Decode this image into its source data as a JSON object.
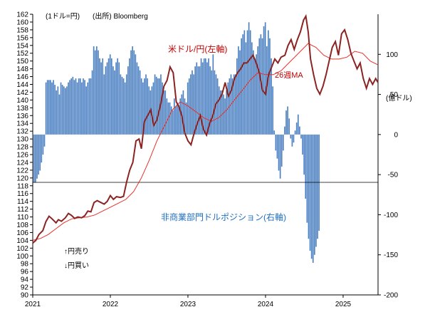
{
  "chart_data": {
    "type": "bar+line",
    "notes": {
      "unit_left": "(1ドル=円)",
      "source": "(出所) Bloomberg",
      "unit_right": "(億ドル)",
      "arrow_up": "↑円売り",
      "arrow_down": "↓円買い"
    },
    "labels": {
      "usdjpy": "米ドル/円(左軸)",
      "ma": "26週MA",
      "position": "非商業部門ドルポジション(右軸)"
    },
    "left_axis": {
      "min": 90,
      "max": 162,
      "step": 2,
      "ticks": [
        "90",
        "92",
        "94",
        "96",
        "98",
        "100",
        "102",
        "104",
        "106",
        "108",
        "110",
        "112",
        "114",
        "116",
        "118",
        "120",
        "122",
        "124",
        "126",
        "128",
        "130",
        "132",
        "134",
        "136",
        "138",
        "140",
        "142",
        "144",
        "146",
        "148",
        "150",
        "152",
        "154",
        "156",
        "158",
        "160",
        "162"
      ]
    },
    "right_axis": {
      "min": -200,
      "max": 150,
      "step": 50,
      "ticks": [
        "-200",
        "-150",
        "-100",
        "-50",
        "0",
        "50",
        "100"
      ]
    },
    "x_axis": {
      "start": 2021.0,
      "end": 2025.45,
      "ticks": [
        "2021",
        "2022",
        "2023",
        "2024",
        "2025"
      ]
    },
    "colors": {
      "usdjpy": "#8b2323",
      "ma": "#e8312b",
      "bars": "#4a7fc1",
      "axis": "#000000",
      "labels_red": "#c00000",
      "labels_blue": "#1f6fc0"
    },
    "series": [
      {
        "name": "米ドル/円(左軸)",
        "kind": "line",
        "axis": "left",
        "points": [
          [
            2021.0,
            103.3
          ],
          [
            2021.04,
            104.0
          ],
          [
            2021.08,
            105.5
          ],
          [
            2021.13,
            106.5
          ],
          [
            2021.17,
            108.8
          ],
          [
            2021.21,
            110.2
          ],
          [
            2021.25,
            109.5
          ],
          [
            2021.3,
            108.5
          ],
          [
            2021.33,
            109.3
          ],
          [
            2021.37,
            108.9
          ],
          [
            2021.42,
            109.8
          ],
          [
            2021.46,
            110.9
          ],
          [
            2021.5,
            110.4
          ],
          [
            2021.54,
            109.6
          ],
          [
            2021.58,
            110.0
          ],
          [
            2021.63,
            109.8
          ],
          [
            2021.67,
            110.3
          ],
          [
            2021.71,
            111.5
          ],
          [
            2021.75,
            111.3
          ],
          [
            2021.79,
            113.7
          ],
          [
            2021.83,
            114.2
          ],
          [
            2021.87,
            113.8
          ],
          [
            2021.92,
            113.3
          ],
          [
            2021.96,
            114.0
          ],
          [
            2022.0,
            115.5
          ],
          [
            2022.04,
            114.5
          ],
          [
            2022.08,
            115.2
          ],
          [
            2022.13,
            115.0
          ],
          [
            2022.17,
            115.3
          ],
          [
            2022.21,
            119.0
          ],
          [
            2022.25,
            122.0
          ],
          [
            2022.29,
            124.0
          ],
          [
            2022.33,
            129.5
          ],
          [
            2022.37,
            130.0
          ],
          [
            2022.4,
            127.5
          ],
          [
            2022.44,
            134.5
          ],
          [
            2022.48,
            136.0
          ],
          [
            2022.52,
            137.5
          ],
          [
            2022.56,
            133.5
          ],
          [
            2022.6,
            134.8
          ],
          [
            2022.65,
            139.0
          ],
          [
            2022.69,
            143.5
          ],
          [
            2022.73,
            145.0
          ],
          [
            2022.77,
            148.5
          ],
          [
            2022.81,
            147.0
          ],
          [
            2022.85,
            139.5
          ],
          [
            2022.88,
            138.5
          ],
          [
            2022.92,
            136.0
          ],
          [
            2022.96,
            131.5
          ],
          [
            2023.0,
            129.5
          ],
          [
            2023.04,
            128.5
          ],
          [
            2023.08,
            131.5
          ],
          [
            2023.12,
            134.0
          ],
          [
            2023.16,
            136.0
          ],
          [
            2023.2,
            132.5
          ],
          [
            2023.24,
            131.0
          ],
          [
            2023.28,
            134.0
          ],
          [
            2023.32,
            136.0
          ],
          [
            2023.36,
            139.0
          ],
          [
            2023.4,
            140.0
          ],
          [
            2023.44,
            141.5
          ],
          [
            2023.48,
            144.5
          ],
          [
            2023.52,
            141.0
          ],
          [
            2023.56,
            142.5
          ],
          [
            2023.6,
            145.5
          ],
          [
            2023.64,
            147.0
          ],
          [
            2023.68,
            148.0
          ],
          [
            2023.72,
            149.5
          ],
          [
            2023.76,
            149.5
          ],
          [
            2023.8,
            150.5
          ],
          [
            2023.84,
            151.5
          ],
          [
            2023.88,
            149.5
          ],
          [
            2023.92,
            147.0
          ],
          [
            2023.96,
            142.5
          ],
          [
            2024.0,
            141.5
          ],
          [
            2024.04,
            146.5
          ],
          [
            2024.08,
            148.5
          ],
          [
            2024.12,
            150.5
          ],
          [
            2024.16,
            149.5
          ],
          [
            2024.2,
            151.0
          ],
          [
            2024.25,
            151.5
          ],
          [
            2024.29,
            154.0
          ],
          [
            2024.33,
            155.5
          ],
          [
            2024.37,
            153.0
          ],
          [
            2024.41,
            155.5
          ],
          [
            2024.45,
            157.5
          ],
          [
            2024.49,
            160.5
          ],
          [
            2024.52,
            161.5
          ],
          [
            2024.55,
            157.5
          ],
          [
            2024.58,
            150.5
          ],
          [
            2024.62,
            146.5
          ],
          [
            2024.66,
            143.0
          ],
          [
            2024.7,
            141.5
          ],
          [
            2024.74,
            143.5
          ],
          [
            2024.78,
            146.5
          ],
          [
            2024.82,
            150.0
          ],
          [
            2024.86,
            153.5
          ],
          [
            2024.9,
            155.0
          ],
          [
            2024.94,
            151.5
          ],
          [
            2024.98,
            157.0
          ],
          [
            2025.02,
            158.0
          ],
          [
            2025.06,
            155.5
          ],
          [
            2025.1,
            152.0
          ],
          [
            2025.14,
            150.0
          ],
          [
            2025.18,
            148.0
          ],
          [
            2025.22,
            149.5
          ],
          [
            2025.26,
            145.5
          ],
          [
            2025.3,
            143.0
          ],
          [
            2025.34,
            145.5
          ],
          [
            2025.38,
            144.0
          ],
          [
            2025.42,
            145.5
          ],
          [
            2025.45,
            144.5
          ]
        ]
      },
      {
        "name": "26週MA",
        "kind": "line",
        "axis": "left",
        "points": [
          [
            2021.0,
            104.0
          ],
          [
            2021.1,
            104.5
          ],
          [
            2021.2,
            105.5
          ],
          [
            2021.3,
            107.0
          ],
          [
            2021.4,
            108.5
          ],
          [
            2021.5,
            109.5
          ],
          [
            2021.6,
            109.8
          ],
          [
            2021.7,
            110.0
          ],
          [
            2021.8,
            110.5
          ],
          [
            2021.9,
            111.5
          ],
          [
            2022.0,
            112.5
          ],
          [
            2022.1,
            113.5
          ],
          [
            2022.2,
            114.5
          ],
          [
            2022.3,
            116.5
          ],
          [
            2022.4,
            120.0
          ],
          [
            2022.5,
            124.5
          ],
          [
            2022.6,
            129.5
          ],
          [
            2022.7,
            133.5
          ],
          [
            2022.8,
            137.5
          ],
          [
            2022.9,
            139.5
          ],
          [
            2023.0,
            138.5
          ],
          [
            2023.1,
            137.0
          ],
          [
            2023.2,
            135.5
          ],
          [
            2023.3,
            134.5
          ],
          [
            2023.4,
            135.5
          ],
          [
            2023.5,
            137.5
          ],
          [
            2023.6,
            140.0
          ],
          [
            2023.7,
            142.5
          ],
          [
            2023.8,
            145.0
          ],
          [
            2023.9,
            147.0
          ],
          [
            2024.0,
            146.5
          ],
          [
            2024.1,
            146.5
          ],
          [
            2024.2,
            147.5
          ],
          [
            2024.3,
            149.5
          ],
          [
            2024.4,
            151.5
          ],
          [
            2024.5,
            153.5
          ],
          [
            2024.55,
            154.5
          ],
          [
            2024.65,
            153.5
          ],
          [
            2024.75,
            151.5
          ],
          [
            2024.85,
            150.5
          ],
          [
            2024.95,
            150.5
          ],
          [
            2025.05,
            151.0
          ],
          [
            2025.15,
            152.5
          ],
          [
            2025.25,
            152.0
          ],
          [
            2025.35,
            150.0
          ],
          [
            2025.45,
            149.0
          ]
        ]
      },
      {
        "name": "非商業部門ドルポジション(右軸)",
        "kind": "bar",
        "axis": "right",
        "start": 2021.0,
        "step": 0.01923,
        "values": [
          -60,
          -60,
          -55,
          -50,
          -45,
          -35,
          -25,
          -15,
          65,
          68,
          68,
          68,
          65,
          68,
          62,
          55,
          60,
          50,
          65,
          62,
          60,
          58,
          60,
          65,
          68,
          70,
          72,
          68,
          70,
          65,
          70,
          70,
          65,
          70,
          68,
          60,
          65,
          70,
          70,
          80,
          110,
          105,
          110,
          105,
          95,
          90,
          95,
          75,
          85,
          90,
          95,
          100,
          95,
          85,
          80,
          90,
          95,
          90,
          75,
          72,
          70,
          65,
          75,
          85,
          95,
          105,
          110,
          105,
          100,
          90,
          85,
          80,
          70,
          65,
          70,
          75,
          70,
          60,
          55,
          60,
          65,
          75,
          72,
          70,
          70,
          75,
          65,
          55,
          55,
          45,
          40,
          40,
          35,
          30,
          45,
          35,
          40,
          35,
          45,
          50,
          55,
          45,
          40,
          65,
          70,
          75,
          80,
          75,
          85,
          90,
          85,
          85,
          95,
          90,
          95,
          95,
          90,
          95,
          85,
          80,
          100,
          80,
          75,
          70,
          60,
          55,
          55,
          50,
          45,
          55,
          65,
          70,
          75,
          70,
          75,
          75,
          95,
          110,
          105,
          120,
          125,
          130,
          115,
          130,
          140,
          130,
          115,
          105,
          95,
          100,
          110,
          120,
          125,
          120,
          135,
          140,
          110,
          130,
          120,
          95,
          60,
          5,
          -20,
          -30,
          -45,
          -55,
          -40,
          -20,
          10,
          30,
          35,
          20,
          -5,
          -15,
          -10,
          5,
          15,
          25,
          10,
          -5,
          -25,
          -50,
          -80,
          -110,
          -130,
          -145,
          -155,
          -160,
          -150,
          -140,
          -130,
          -120
        ]
      }
    ]
  }
}
